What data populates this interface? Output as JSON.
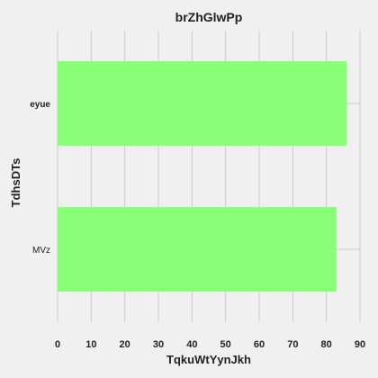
{
  "chart_data": {
    "type": "bar",
    "orientation": "horizontal",
    "title": "brZhGlwPp",
    "xlabel": "TqkuWtYynJkh",
    "ylabel": "TdhsDTs",
    "categories": [
      "eyue",
      "MVz"
    ],
    "values": [
      86,
      83
    ],
    "xlim": [
      0,
      90
    ],
    "xticks": [
      0,
      10,
      20,
      30,
      40,
      50,
      60,
      70,
      80,
      90
    ],
    "grid": true,
    "bar_color": "#88ff77",
    "background": "#f0f0f0"
  }
}
